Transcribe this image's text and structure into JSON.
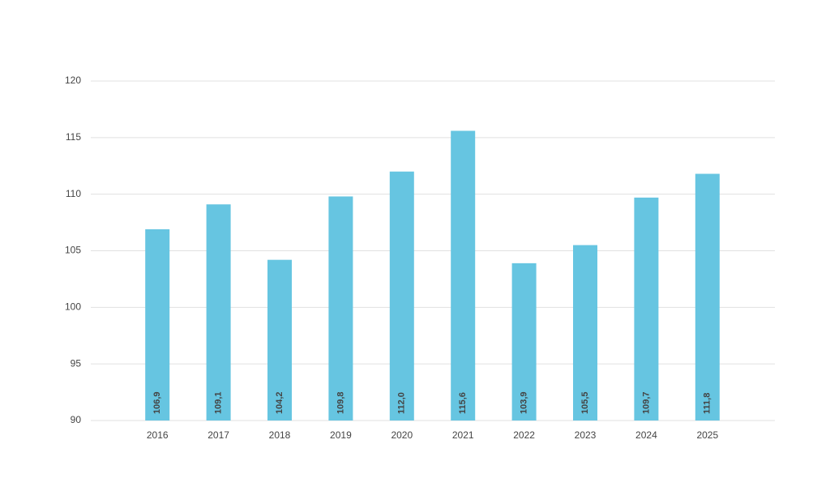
{
  "chart_data": {
    "type": "bar",
    "categories": [
      "2016",
      "2017",
      "2018",
      "2019",
      "2020",
      "2021",
      "2022",
      "2023",
      "2024",
      "2025"
    ],
    "values": [
      106.9,
      109.1,
      104.2,
      109.8,
      112.0,
      115.6,
      103.9,
      105.5,
      109.7,
      111.8
    ],
    "value_labels": [
      "106,9",
      "109,1",
      "104,2",
      "109,8",
      "112,0",
      "115,6",
      "103,9",
      "105,5",
      "109,7",
      "111,8"
    ],
    "color": "#66c5e1",
    "ylim": [
      90,
      120
    ],
    "yticks": [
      90,
      95,
      100,
      105,
      110,
      115,
      120
    ],
    "grid": true
  }
}
